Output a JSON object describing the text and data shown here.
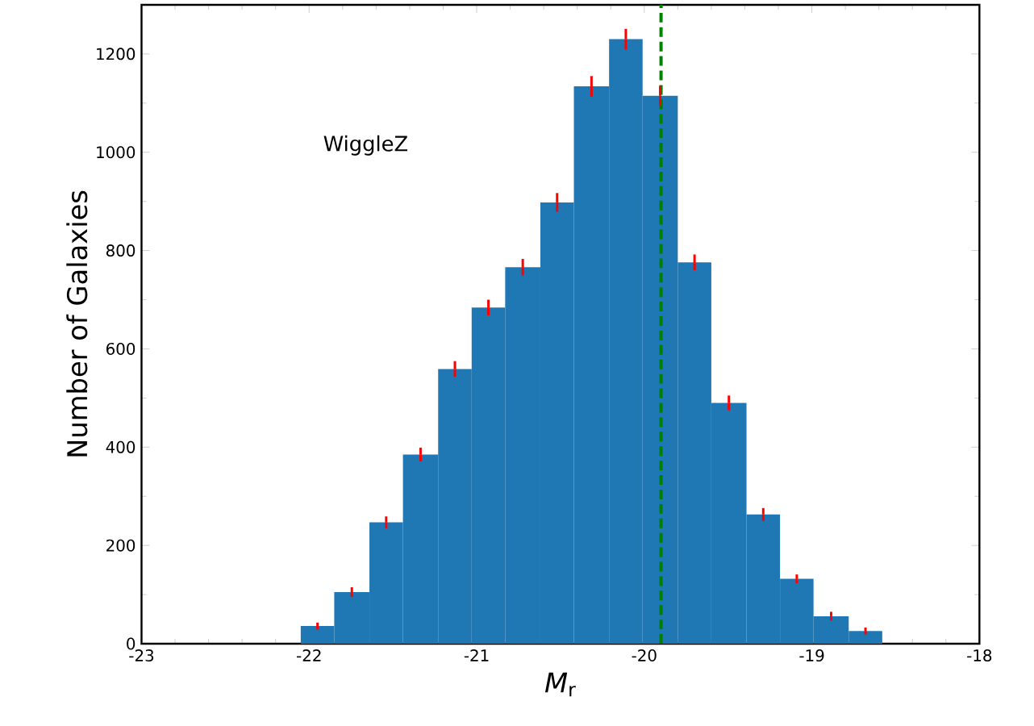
{
  "chart_data": {
    "type": "histogram",
    "xlabel": "*M*$_{r}$",
    "ylabel": "Number of Galaxies",
    "annotations": [
      "WiggleZ"
    ],
    "bins": [
      -22.05,
      -21.85,
      -21.64,
      -21.44,
      -21.23,
      -21.03,
      -20.83,
      -20.62,
      -20.42,
      -20.21,
      -20.01,
      -19.8,
      -19.6,
      -19.39,
      -19.19,
      -18.99,
      -18.78,
      -18.58
    ],
    "values": [
      36,
      105,
      247,
      385,
      559,
      684,
      766,
      898,
      1134,
      1230,
      1115,
      776,
      490,
      263,
      132,
      56,
      26
    ],
    "errors": [
      7,
      10,
      12,
      14,
      16,
      16,
      17,
      19,
      21,
      21,
      20,
      16,
      15,
      13,
      9,
      9,
      7
    ],
    "color": "#1f77b4",
    "xlim": [
      -23,
      -18
    ],
    "xticks": [
      -23,
      -22,
      -21,
      -20,
      -19,
      -18
    ],
    "ylim": [
      0,
      1300
    ],
    "yticks": [
      0,
      200,
      400,
      600,
      800,
      1000,
      1200
    ],
    "ref_lines": [
      {
        "axis": "x",
        "value": -19.9,
        "color": "#008000",
        "line_style": "dashed"
      }
    ],
    "grid": false
  }
}
